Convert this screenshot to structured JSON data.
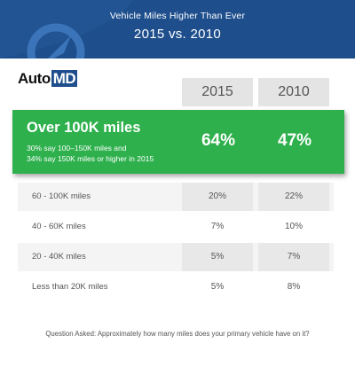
{
  "header": {
    "title": "Vehicle Miles Higher Than Ever",
    "subtitle": "2015 vs. 2010"
  },
  "logo": {
    "part1": "Auto",
    "part2": "MD"
  },
  "colors": {
    "header": "#1e4f8c",
    "highlight": "#2eb04d",
    "row_shade": "#e8e8e8"
  },
  "chart_data": {
    "type": "table",
    "columns": [
      "2015",
      "2010"
    ],
    "highlight": {
      "label": "Over 100K miles",
      "note_line1": "30% say 100–150K miles and",
      "note_line2": "34% say 150K miles or higher in 2015",
      "values": [
        "64%",
        "47%"
      ]
    },
    "rows": [
      {
        "label": "60 - 100K miles",
        "values": [
          "20%",
          "22%"
        ]
      },
      {
        "label": "40 - 60K miles",
        "values": [
          "7%",
          "10%"
        ]
      },
      {
        "label": "20 - 40K miles",
        "values": [
          "5%",
          "7%"
        ]
      },
      {
        "label": "Less than 20K miles",
        "values": [
          "5%",
          "8%"
        ]
      }
    ]
  },
  "footnote": "Question Asked: Approximately how many miles does your primary vehicle have on it?"
}
